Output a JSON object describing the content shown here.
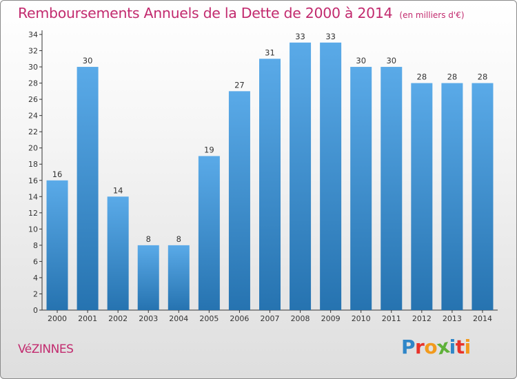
{
  "title": "Remboursements Annuels de la Dette de 2000 à 2014",
  "subtitle": "(en milliers d'€)",
  "commune": "VéZINNES",
  "brand": {
    "letters": [
      "P",
      "r",
      "o",
      "x",
      "i",
      "t",
      "i"
    ],
    "colors": [
      "#2f86c8",
      "#e8332a",
      "#f29a1d",
      "#5fb13a",
      "#2f86c8",
      "#e8332a",
      "#f29a1d"
    ]
  },
  "colors": {
    "title": "#c22a6e",
    "bar_light": "#5aaae8",
    "bar_dark": "#2673b0",
    "axis": "#333333"
  },
  "chart_data": {
    "type": "bar",
    "categories": [
      "2000",
      "2001",
      "2002",
      "2003",
      "2004",
      "2005",
      "2006",
      "2007",
      "2008",
      "2009",
      "2010",
      "2011",
      "2012",
      "2013",
      "2014"
    ],
    "values": [
      16,
      30,
      14,
      8,
      8,
      19,
      27,
      31,
      33,
      33,
      30,
      30,
      28,
      28,
      28
    ],
    "title": "Remboursements Annuels de la Dette de 2000 à 2014",
    "xlabel": "",
    "ylabel": "",
    "ylim": [
      0,
      34
    ],
    "yticks": [
      0,
      2,
      4,
      6,
      8,
      10,
      12,
      14,
      16,
      18,
      20,
      22,
      24,
      26,
      28,
      30,
      32,
      34
    ],
    "grid": false,
    "legend": "none",
    "data_labels": true
  }
}
